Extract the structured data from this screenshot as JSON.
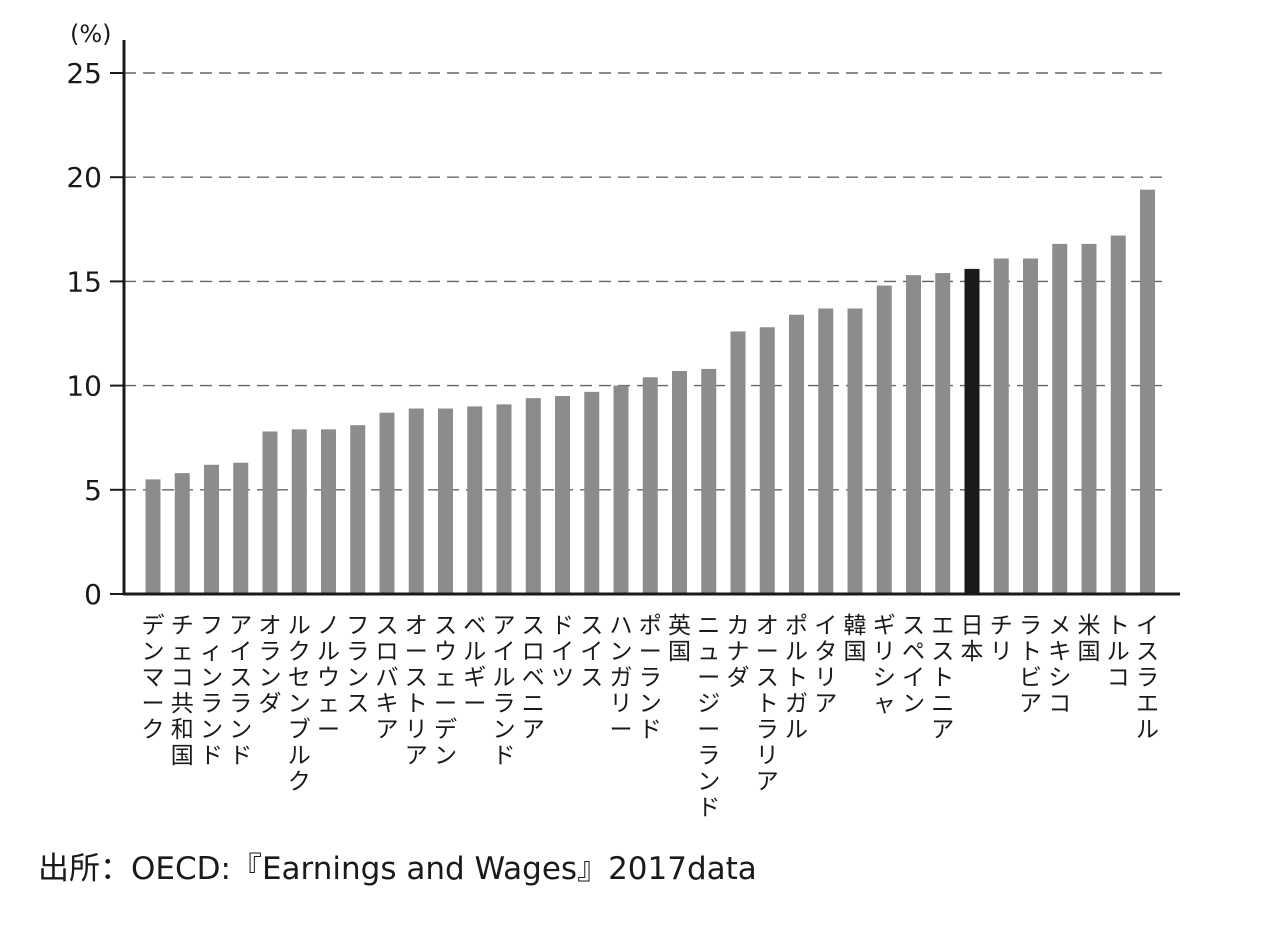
{
  "chart_data": {
    "type": "bar",
    "unit_label": "(%)",
    "ylim": [
      0,
      25
    ],
    "yticks": [
      0,
      5,
      10,
      15,
      20,
      25
    ],
    "grid": true,
    "categories": [
      "デンマーク",
      "チェコ共和国",
      "フィンランド",
      "アイスランド",
      "オランダ",
      "ルクセンブルク",
      "ノルウェー",
      "フランス",
      "スロバキア",
      "オーストリア",
      "スウェーデン",
      "ベルギー",
      "アイルランド",
      "スロベニア",
      "ドイツ",
      "スイス",
      "ハンガリー",
      "ポーランド",
      "英国",
      "ニュージーランド",
      "カナダ",
      "オーストラリア",
      "ポルトガル",
      "イタリア",
      "韓国",
      "ギリシャ",
      "スペイン",
      "エストニア",
      "日本",
      "チリ",
      "ラトビア",
      "メキシコ",
      "米国",
      "トルコ",
      "イスラエル"
    ],
    "values": [
      5.5,
      5.8,
      6.2,
      6.3,
      7.8,
      7.9,
      7.9,
      8.1,
      8.7,
      8.9,
      8.9,
      9.0,
      9.1,
      9.4,
      9.5,
      9.7,
      10.0,
      10.4,
      10.7,
      10.8,
      12.6,
      12.8,
      13.4,
      13.7,
      13.7,
      14.8,
      15.3,
      15.4,
      15.6,
      16.1,
      16.1,
      16.8,
      16.8,
      17.2,
      19.4
    ],
    "highlight_category": "日本",
    "colors": {
      "bar": "#8c8c8c",
      "highlight": "#1a1a1a",
      "axis": "#1a1a1a",
      "grid": "#666666"
    }
  },
  "source_note": "出所：OECD:『Earnings and Wages』2017data"
}
